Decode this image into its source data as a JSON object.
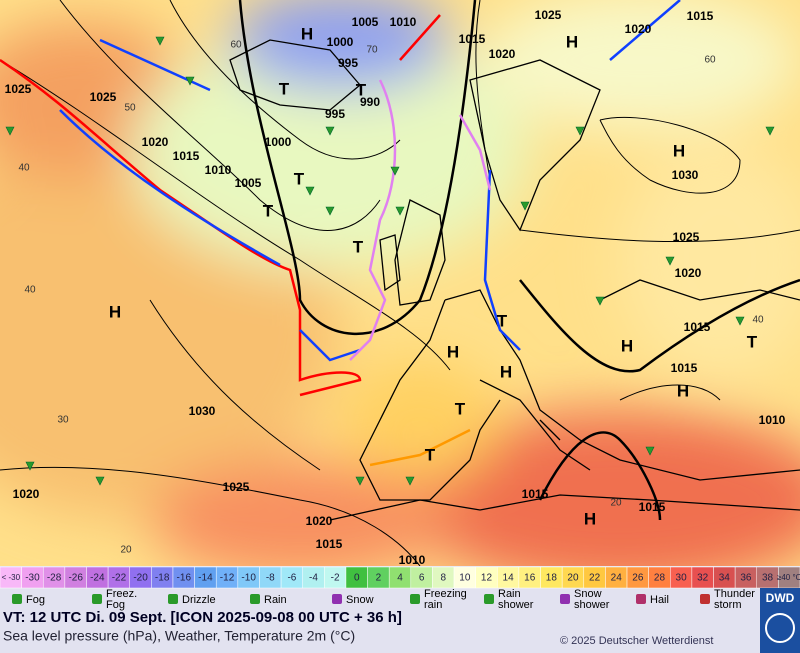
{
  "map": {
    "isobar_labels": [
      "1005",
      "1010",
      "1025",
      "1015",
      "1020",
      "1015",
      "1020",
      "1000",
      "995",
      "1025",
      "1025",
      "990",
      "995",
      "1000",
      "1020",
      "1015",
      "1010",
      "1005",
      "1030",
      "1025",
      "1020",
      "1015",
      "1015",
      "1030",
      "1010",
      "1025",
      "1015",
      "1015",
      "1020",
      "1020",
      "1015",
      "1010"
    ],
    "isotherm_labels": [
      "50",
      "60",
      "60",
      "40",
      "40",
      "30",
      "20",
      "20",
      "40",
      "70"
    ],
    "pressure_centers": [
      "H",
      "H",
      "H",
      "H",
      "H",
      "H",
      "H",
      "H",
      "H",
      "T",
      "T",
      "T",
      "T",
      "T",
      "T",
      "T",
      "T",
      "T"
    ]
  },
  "temperature_scale": {
    "labels": [
      "< -30",
      "-30",
      "-28",
      "-26",
      "-24",
      "-22",
      "-20",
      "-18",
      "-16",
      "-14",
      "-12",
      "-10",
      "-8",
      "-6",
      "-4",
      "-2",
      "0",
      "2",
      "4",
      "6",
      "8",
      "10",
      "12",
      "14",
      "16",
      "18",
      "20",
      "22",
      "24",
      "26",
      "28",
      "30",
      "32",
      "34",
      "36",
      "38",
      "≥40 °C"
    ],
    "colors": [
      "#f8b8f8",
      "#f0a0f0",
      "#e090e8",
      "#d080e0",
      "#c070e0",
      "#b070e8",
      "#9070f0",
      "#8080f0",
      "#7090f0",
      "#60a0f0",
      "#70b0f8",
      "#80c8f8",
      "#90d8f8",
      "#a0e8f8",
      "#b0f0f0",
      "#c0f8f0",
      "#40c040",
      "#60d060",
      "#90e070",
      "#c0f0a0",
      "#e0f8c0",
      "#ffffe0",
      "#ffffc0",
      "#fff8a0",
      "#fff080",
      "#ffe860",
      "#ffd850",
      "#ffc840",
      "#ffb040",
      "#ff9840",
      "#ff8040",
      "#f86050",
      "#e85050",
      "#d85050",
      "#c86060",
      "#b87070",
      "#a08080"
    ]
  },
  "weather_legend": [
    {
      "lines": [
        "Fog"
      ]
    },
    {
      "lines": [
        "Freez.",
        "Fog"
      ]
    },
    {
      "lines": [
        "Drizzle"
      ]
    },
    {
      "lines": [
        "Rain"
      ]
    },
    {
      "lines": [
        "Snow"
      ]
    },
    {
      "lines": [
        "Freezing",
        "rain"
      ]
    },
    {
      "lines": [
        "Rain",
        "shower"
      ]
    },
    {
      "lines": [
        "Snow",
        "shower"
      ]
    },
    {
      "lines": [
        "Hail"
      ]
    },
    {
      "lines": [
        "Thunder",
        "storm"
      ]
    }
  ],
  "footer": {
    "valid_time": "VT: 12 UTC Di.  09 Sept. [ICON 2025-09-08  00 UTC + 36 h]",
    "description": "Sea level pressure (hPa), Weather, Temperature 2m (°C)",
    "copyright": "© 2025 Deutscher Wetterdienst",
    "logo": "DWD"
  }
}
